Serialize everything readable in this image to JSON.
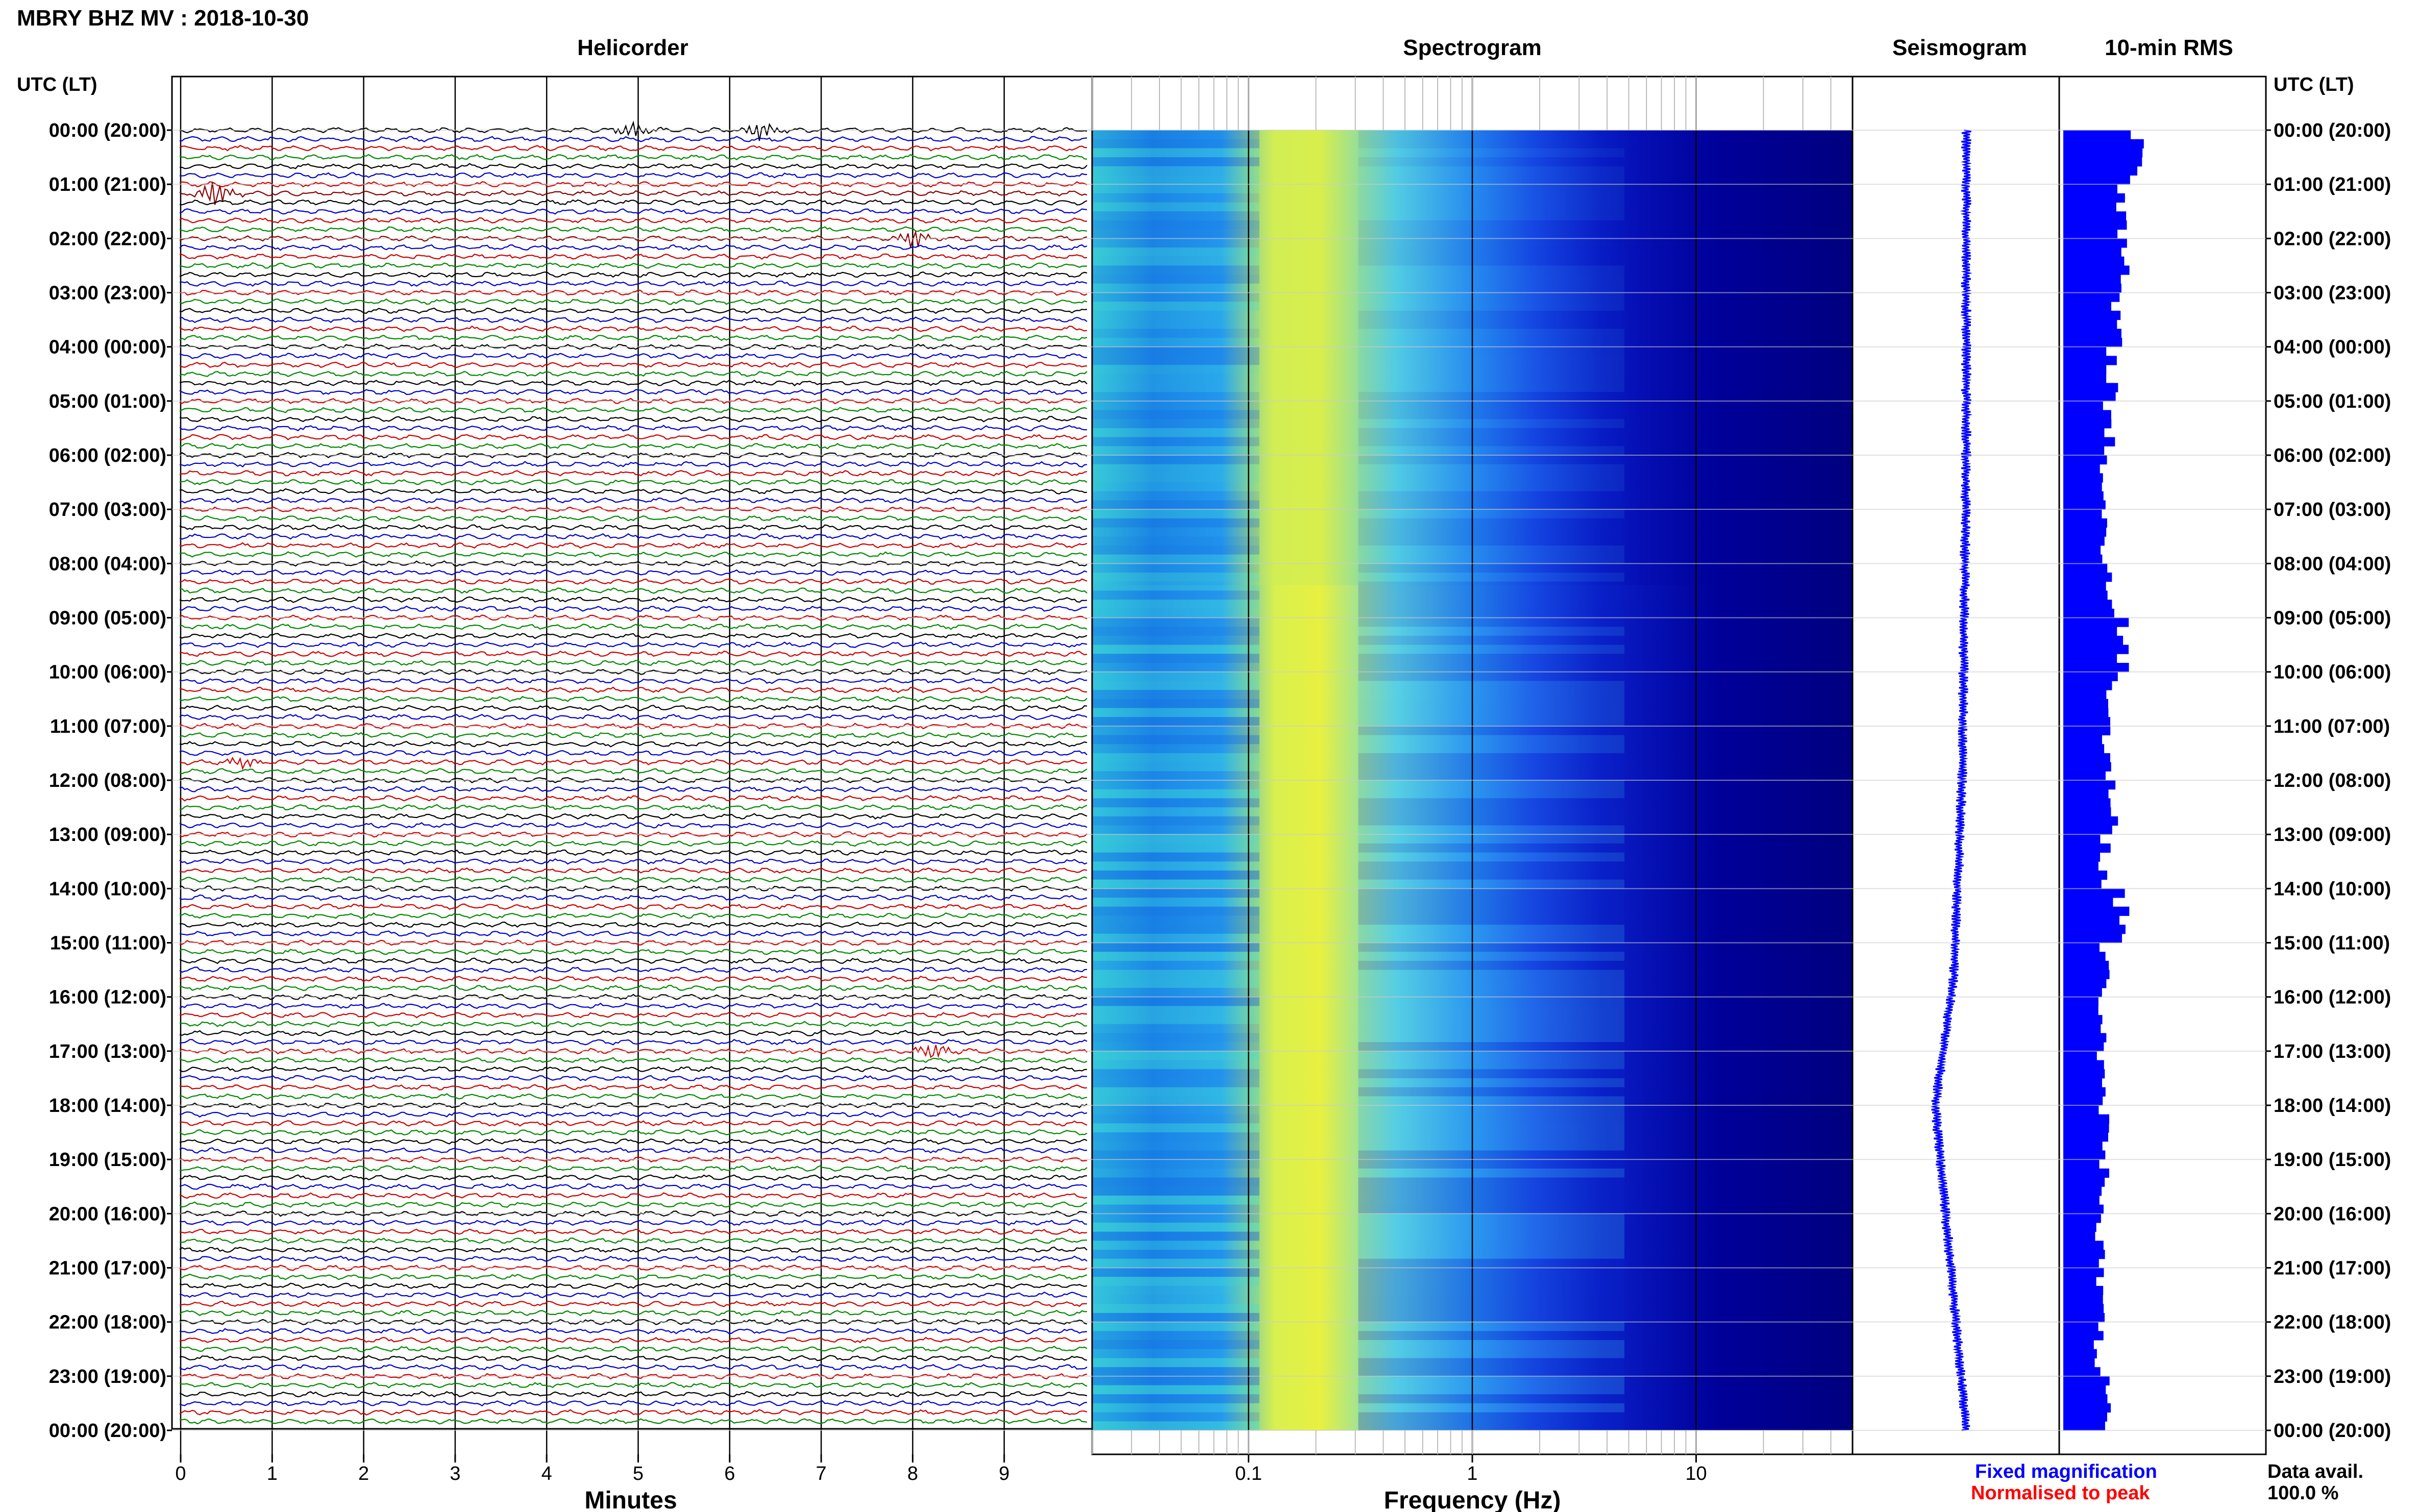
{
  "header": {
    "title": "MBRY BHZ MV : 2018-10-30"
  },
  "panels": {
    "helicorder": "Helicorder",
    "spectrogram": "Spectrogram",
    "seismogram": "Seismogram",
    "rms": "10-min RMS"
  },
  "axes": {
    "left_axis_title": "UTC (LT)",
    "right_axis_title": "UTC (LT)",
    "hour_labels": [
      "00:00 (20:00)",
      "01:00 (21:00)",
      "02:00 (22:00)",
      "03:00 (23:00)",
      "04:00 (00:00)",
      "05:00 (01:00)",
      "06:00 (02:00)",
      "07:00 (03:00)",
      "08:00 (04:00)",
      "09:00 (05:00)",
      "10:00 (06:00)",
      "11:00 (07:00)",
      "12:00 (08:00)",
      "13:00 (09:00)",
      "14:00 (10:00)",
      "15:00 (11:00)",
      "16:00 (12:00)",
      "17:00 (13:00)",
      "18:00 (14:00)",
      "19:00 (15:00)",
      "20:00 (16:00)",
      "21:00 (17:00)",
      "22:00 (18:00)",
      "23:00 (19:00)",
      "00:00 (20:00)"
    ],
    "minutes_label": "Minutes",
    "minute_ticks": [
      "0",
      "1",
      "2",
      "3",
      "4",
      "5",
      "6",
      "7",
      "8",
      "9"
    ],
    "frequency_label": "Frequency (Hz)",
    "frequency_ticks": [
      "0.1",
      "1",
      "10"
    ]
  },
  "legend": {
    "fixed": "Fixed magnification",
    "normalised": "Normalised to peak",
    "fixed_color": "#0000ff",
    "normalised_color": "#ff0000"
  },
  "availability": {
    "label": "Data avail.",
    "value": "100.0 %"
  },
  "colors": {
    "trace_cycle": [
      "#000000",
      "#0000cc",
      "#cc0000",
      "#008800"
    ],
    "highlight_trace": "#880000",
    "spectro_low": "#00007f",
    "spectro_mid": "#40d0e0",
    "spectro_high": "#e0f040",
    "rms_bar": "#0000ff"
  },
  "chart_data": [
    {
      "type": "line",
      "name": "helicorder",
      "rows": 144,
      "minutes_per_row": 10,
      "xlim": [
        0,
        10
      ],
      "events": [
        {
          "row": 0,
          "minute": 5.0,
          "amp": 1.2
        },
        {
          "row": 0,
          "minute": 6.4,
          "amp": 1.6
        },
        {
          "row": 7,
          "minute": 0.4,
          "amp": 2.2
        },
        {
          "row": 12,
          "minute": 8.1,
          "amp": 1.6
        },
        {
          "row": 70,
          "minute": 0.7,
          "amp": 1.0
        },
        {
          "row": 102,
          "minute": 8.3,
          "amp": 1.4
        }
      ]
    },
    {
      "type": "heatmap",
      "name": "spectrogram",
      "xscale": "log",
      "xlim": [
        0.02,
        50
      ],
      "peak_band_hz": [
        0.15,
        0.3
      ],
      "rows": 144
    },
    {
      "type": "line",
      "name": "seismogram",
      "drift": [
        {
          "t": 0,
          "x": 0.55
        },
        {
          "t": 0.25,
          "x": 0.55
        },
        {
          "t": 0.5,
          "x": 0.53
        },
        {
          "t": 0.65,
          "x": 0.49
        },
        {
          "t": 0.75,
          "x": 0.4
        },
        {
          "t": 0.85,
          "x": 0.46
        },
        {
          "t": 1.0,
          "x": 0.55
        }
      ]
    },
    {
      "type": "bar",
      "name": "rms",
      "values": [
        0.38,
        0.3,
        0.28,
        0.25,
        0.24,
        0.22,
        0.2,
        0.2,
        0.22,
        0.3,
        0.24,
        0.22,
        0.24,
        0.2,
        0.28,
        0.2,
        0.19,
        0.18,
        0.2,
        0.2,
        0.18,
        0.18,
        0.17,
        0.2
      ]
    }
  ]
}
